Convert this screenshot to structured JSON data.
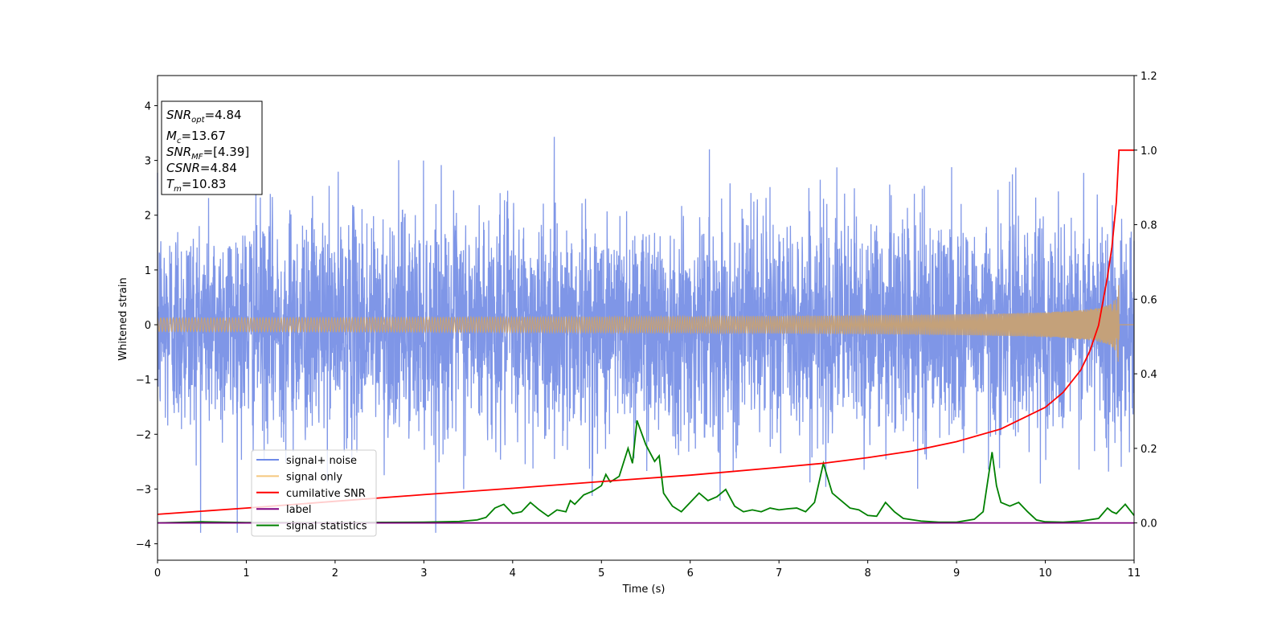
{
  "chart_data": {
    "type": "line",
    "xlabel": "Time (s)",
    "ylabel": "Whitened strain",
    "xlim": [
      0,
      11
    ],
    "ylim_left": [
      -4.3,
      4.55
    ],
    "ylim_right": [
      -0.1,
      1.2
    ],
    "xticks": [
      "0",
      "1",
      "2",
      "3",
      "4",
      "5",
      "6",
      "7",
      "8",
      "9",
      "10",
      "11"
    ],
    "yticks_left": [
      "4",
      "3",
      "2",
      "1",
      "0",
      "−1",
      "−2",
      "−3",
      "−4"
    ],
    "yticks_left_values": [
      4,
      3,
      2,
      1,
      0,
      -1,
      -2,
      -3,
      -4
    ],
    "yticks_right": [
      "1.2",
      "1.0",
      "0.8",
      "0.6",
      "0.4",
      "0.2",
      "0.0"
    ],
    "yticks_right_values": [
      1.2,
      1.0,
      0.8,
      0.6,
      0.4,
      0.2,
      0.0
    ],
    "annotation": {
      "snr_opt": {
        "name": "SNR",
        "sub": "opt",
        "value": "=4.84"
      },
      "mc": {
        "name": "M",
        "sub": "c",
        "value": "=13.67"
      },
      "snr_mf": {
        "name": "SNR",
        "sub": "MF",
        "value": "=[4.39]"
      },
      "csnr": {
        "name": "CSNR",
        "sub": "",
        "value": "=4.84"
      },
      "tm": {
        "name": "T",
        "sub": "m",
        "value": "=10.83"
      }
    },
    "legend": {
      "placement": "lower-left",
      "items": [
        {
          "label": "signal+ noise",
          "color": "#6f8ae8"
        },
        {
          "label": "signal only",
          "color": "#f5c77e"
        },
        {
          "label": "cumilative SNR",
          "color": "#ff0000"
        },
        {
          "label": "label",
          "color": "#800080"
        },
        {
          "label": "signal statistics",
          "color": "#008000"
        }
      ]
    },
    "series": [
      {
        "name": "signal+ noise",
        "axis": "left",
        "color": "#7890e6",
        "noise_amplitude_sd": 1.0,
        "x_range": [
          0,
          11
        ],
        "peak_max": 4.17,
        "peak_min": -3.8
      },
      {
        "name": "signal only",
        "axis": "left",
        "color": "#c4a17a",
        "merger_time": 10.83,
        "peak_amplitude": 1.0
      },
      {
        "name": "cumilative SNR",
        "axis": "right",
        "color": "#ff0000",
        "x": [
          0,
          1,
          2,
          3,
          4,
          5,
          6,
          7,
          7.5,
          8,
          8.5,
          9,
          9.5,
          10,
          10.2,
          10.4,
          10.5,
          10.6,
          10.7,
          10.75,
          10.8,
          10.83,
          11
        ],
        "y": [
          0.023,
          0.04,
          0.058,
          0.076,
          0.093,
          0.111,
          0.128,
          0.149,
          0.16,
          0.175,
          0.193,
          0.218,
          0.252,
          0.31,
          0.35,
          0.41,
          0.46,
          0.53,
          0.66,
          0.74,
          0.86,
          1.0,
          1.0
        ]
      },
      {
        "name": "label",
        "axis": "right",
        "color": "#800080",
        "x": [
          0,
          11
        ],
        "y": [
          0.0,
          0.0
        ]
      },
      {
        "name": "signal statistics",
        "axis": "right",
        "color": "#008000",
        "x": [
          0,
          0.5,
          1,
          2,
          3,
          3.4,
          3.6,
          3.7,
          3.8,
          3.9,
          4.0,
          4.1,
          4.2,
          4.3,
          4.4,
          4.5,
          4.6,
          4.65,
          4.7,
          4.8,
          4.9,
          5.0,
          5.05,
          5.1,
          5.2,
          5.3,
          5.35,
          5.4,
          5.5,
          5.6,
          5.65,
          5.7,
          5.8,
          5.9,
          6.0,
          6.1,
          6.2,
          6.3,
          6.4,
          6.5,
          6.6,
          6.7,
          6.8,
          6.9,
          7.0,
          7.1,
          7.2,
          7.3,
          7.4,
          7.5,
          7.55,
          7.6,
          7.7,
          7.8,
          7.9,
          8.0,
          8.1,
          8.2,
          8.3,
          8.4,
          8.6,
          8.8,
          9.0,
          9.2,
          9.3,
          9.4,
          9.45,
          9.5,
          9.6,
          9.7,
          9.8,
          9.9,
          10.0,
          10.2,
          10.4,
          10.6,
          10.7,
          10.75,
          10.8,
          10.9,
          11
        ],
        "y": [
          0.0,
          0.003,
          0.001,
          0.001,
          0.002,
          0.004,
          0.008,
          0.015,
          0.04,
          0.05,
          0.025,
          0.03,
          0.055,
          0.035,
          0.018,
          0.035,
          0.03,
          0.06,
          0.05,
          0.075,
          0.085,
          0.1,
          0.13,
          0.11,
          0.125,
          0.2,
          0.16,
          0.275,
          0.21,
          0.165,
          0.18,
          0.08,
          0.045,
          0.03,
          0.055,
          0.08,
          0.06,
          0.07,
          0.09,
          0.045,
          0.03,
          0.035,
          0.03,
          0.04,
          0.035,
          0.038,
          0.04,
          0.03,
          0.055,
          0.16,
          0.12,
          0.08,
          0.06,
          0.04,
          0.035,
          0.02,
          0.018,
          0.055,
          0.03,
          0.012,
          0.005,
          0.002,
          0.002,
          0.01,
          0.03,
          0.19,
          0.1,
          0.055,
          0.045,
          0.055,
          0.03,
          0.008,
          0.003,
          0.002,
          0.005,
          0.012,
          0.04,
          0.03,
          0.025,
          0.05,
          0.02
        ]
      }
    ]
  }
}
